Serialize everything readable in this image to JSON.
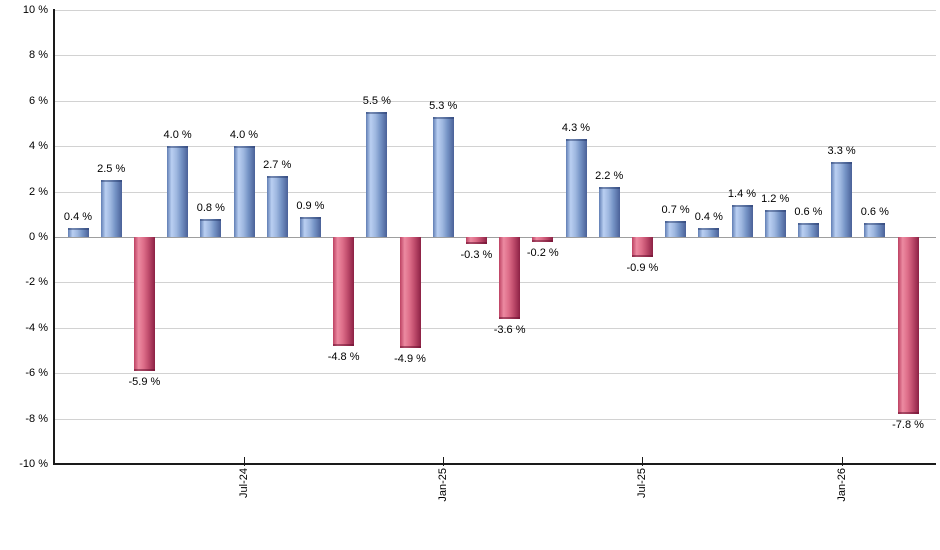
{
  "chart_data": {
    "type": "bar",
    "title": "",
    "xlabel": "",
    "ylabel": "",
    "ylim": [
      -10,
      10
    ],
    "grid": true,
    "values": [
      0.4,
      2.5,
      -5.9,
      4.0,
      0.8,
      4.0,
      2.7,
      0.9,
      -4.8,
      5.5,
      -4.9,
      5.3,
      -0.3,
      -3.6,
      -0.2,
      4.3,
      2.2,
      -0.9,
      0.7,
      0.4,
      1.4,
      1.2,
      0.6,
      3.3,
      0.6,
      -7.8
    ],
    "bar_labels": [
      "0.4 %",
      "2.5 %",
      "-5.9 %",
      "4.0 %",
      "0.8 %",
      "4.0 %",
      "2.7 %",
      "0.9 %",
      "-4.8 %",
      "5.5 %",
      "-4.9 %",
      "5.3 %",
      "-0.3 %",
      "-3.6 %",
      "-0.2 %",
      "4.3 %",
      "2.2 %",
      "-0.9 %",
      "0.7 %",
      "0.4 %",
      "1.4 %",
      "1.2 %",
      "0.6 %",
      "3.3 %",
      "0.6 %",
      "-7.8 %"
    ],
    "x_tick_labels": [
      {
        "label": "Jul-24",
        "bar_index": 5
      },
      {
        "label": "Jan-25",
        "bar_index": 11
      },
      {
        "label": "Jul-25",
        "bar_index": 17
      },
      {
        "label": "Jan-26",
        "bar_index": 23
      }
    ],
    "y_ticks": [
      {
        "label": "10 %",
        "value": 10
      },
      {
        "label": "8 %",
        "value": 8
      },
      {
        "label": "6 %",
        "value": 6
      },
      {
        "label": "4 %",
        "value": 4
      },
      {
        "label": "2 %",
        "value": 2
      },
      {
        "label": "0 %",
        "value": 0
      },
      {
        "label": "-2 %",
        "value": -2
      },
      {
        "label": "-4 %",
        "value": -4
      },
      {
        "label": "-6 %",
        "value": -6
      },
      {
        "label": "-8 %",
        "value": -8
      },
      {
        "label": "-10 %",
        "value": -10
      }
    ],
    "legend": null,
    "colors": {
      "positive_bar_gradient": [
        "#607eb4",
        "#bacff2",
        "#9fb8e0",
        "#7694c6",
        "#4a6198"
      ],
      "negative_bar_gradient": [
        "#bc4162",
        "#ec8aa1",
        "#de6f8a",
        "#c14e6e",
        "#8c2144"
      ],
      "gridline": "#d2d2d2",
      "zero_gridline": "#9e9e9e",
      "axis": "#1a1a1a",
      "label_text": "#000000",
      "background": "#ffffff"
    }
  }
}
